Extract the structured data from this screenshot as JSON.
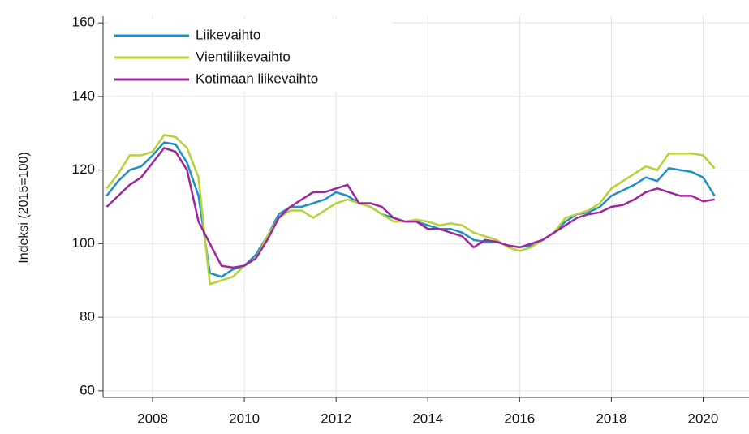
{
  "chart_data": {
    "type": "line",
    "ylabel": "Indeksi (2015=100)",
    "x": [
      2007,
      2007.25,
      2007.5,
      2007.75,
      2008,
      2008.25,
      2008.5,
      2008.75,
      2009,
      2009.25,
      2009.5,
      2009.75,
      2010,
      2010.25,
      2010.5,
      2010.75,
      2011,
      2011.25,
      2011.5,
      2011.75,
      2012,
      2012.25,
      2012.5,
      2012.75,
      2013,
      2013.25,
      2013.5,
      2013.75,
      2014,
      2014.25,
      2014.5,
      2014.75,
      2015,
      2015.25,
      2015.5,
      2015.75,
      2016,
      2016.25,
      2016.5,
      2016.75,
      2017,
      2017.25,
      2017.5,
      2017.75,
      2018,
      2018.25,
      2018.5,
      2018.75,
      2019,
      2019.25,
      2019.5,
      2019.75,
      2020,
      2020.25
    ],
    "series": [
      {
        "name": "Liikevaihto",
        "color": "#1f8fc8",
        "values": [
          113,
          117,
          120,
          121,
          124,
          127.5,
          127,
          122,
          113,
          92,
          91,
          93,
          94,
          97,
          102,
          108,
          110,
          110,
          111,
          112,
          114,
          113,
          111,
          110,
          108,
          107,
          106,
          106,
          105,
          104,
          104,
          103,
          101,
          100.5,
          100.5,
          99.5,
          99,
          99.5,
          101,
          103,
          106,
          108,
          108.5,
          110,
          113,
          114.5,
          116,
          118,
          117,
          120.5,
          120,
          119.5,
          118,
          113
        ]
      },
      {
        "name": "Vientiliikevaihto",
        "color": "#b5d334",
        "values": [
          115,
          119,
          124,
          124,
          125,
          129.5,
          129,
          126,
          118,
          89,
          90,
          91,
          94,
          96,
          102,
          107,
          109,
          109,
          107,
          109,
          111,
          112,
          111,
          110,
          108,
          106,
          106,
          106.5,
          106,
          105,
          105.5,
          105,
          103,
          102,
          101,
          99,
          98,
          99,
          101,
          103,
          107,
          108,
          109,
          111,
          115,
          117,
          119,
          121,
          120,
          124.5,
          124.5,
          124.5,
          124,
          120.5
        ]
      },
      {
        "name": "Kotimaan liikevaihto",
        "color": "#a0259f",
        "values": [
          110,
          113,
          116,
          118,
          122,
          126,
          125,
          120,
          106,
          100,
          94,
          93.5,
          94,
          96,
          101,
          107,
          110,
          112,
          114,
          114,
          115,
          116,
          111,
          111,
          110,
          107,
          106,
          106,
          104,
          104,
          103,
          102,
          99,
          101,
          100.5,
          99.5,
          99,
          100,
          101,
          103,
          105,
          107,
          108,
          108.5,
          110,
          110.5,
          112,
          114,
          115,
          114,
          113,
          113,
          111.5,
          112
        ]
      }
    ],
    "xlim": [
      2006.92,
      2021
    ],
    "xticks": [
      2008,
      2010,
      2012,
      2014,
      2016,
      2018,
      2020
    ],
    "ylim": [
      58.2,
      161.8
    ],
    "yticks": [
      60,
      80,
      100,
      120,
      140,
      160
    ],
    "grid": true,
    "legend": "upper-left"
  }
}
